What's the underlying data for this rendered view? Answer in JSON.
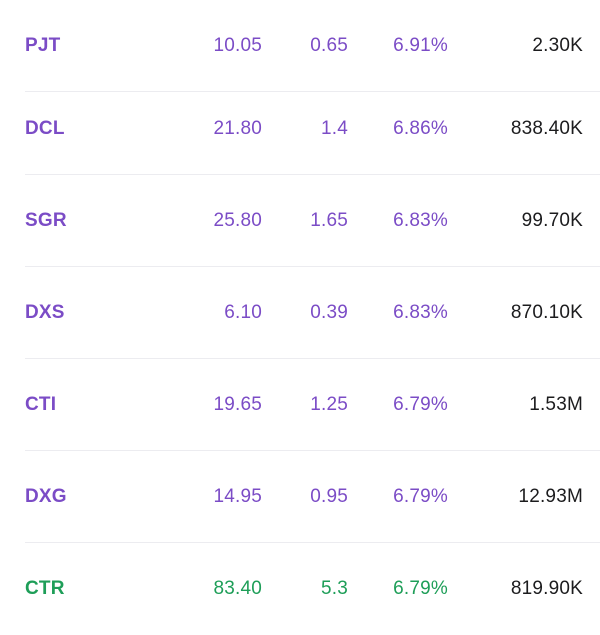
{
  "colors": {
    "ceiling_purple": "#7b4cc6",
    "gain_green": "#1e9e58",
    "volume_text": "#1c1c1e",
    "divider": "#ececf0"
  },
  "rows": [
    {
      "symbol": "PJT",
      "price": "10.05",
      "change": "0.65",
      "percent": "6.91%",
      "volume": "2.30K",
      "status": "ceiling"
    },
    {
      "symbol": "DCL",
      "price": "21.80",
      "change": "1.4",
      "percent": "6.86%",
      "volume": "838.40K",
      "status": "ceiling"
    },
    {
      "symbol": "SGR",
      "price": "25.80",
      "change": "1.65",
      "percent": "6.83%",
      "volume": "99.70K",
      "status": "ceiling"
    },
    {
      "symbol": "DXS",
      "price": "6.10",
      "change": "0.39",
      "percent": "6.83%",
      "volume": "870.10K",
      "status": "ceiling"
    },
    {
      "symbol": "CTI",
      "price": "19.65",
      "change": "1.25",
      "percent": "6.79%",
      "volume": "1.53M",
      "status": "ceiling"
    },
    {
      "symbol": "DXG",
      "price": "14.95",
      "change": "0.95",
      "percent": "6.79%",
      "volume": "12.93M",
      "status": "ceiling"
    },
    {
      "symbol": "CTR",
      "price": "83.40",
      "change": "5.3",
      "percent": "6.79%",
      "volume": "819.90K",
      "status": "gain"
    }
  ]
}
